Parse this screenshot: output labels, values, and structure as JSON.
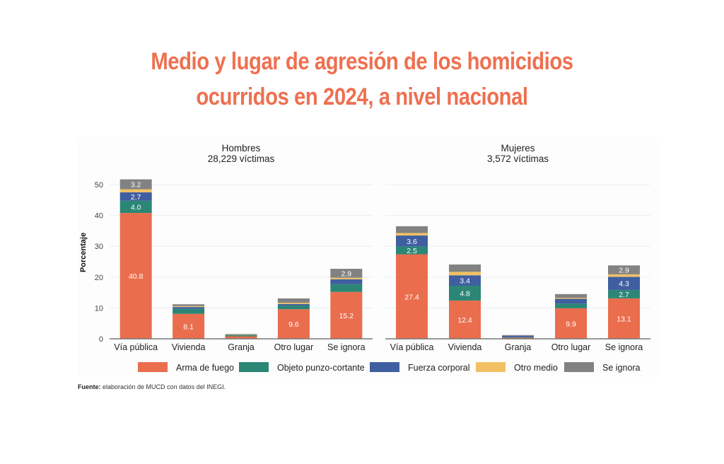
{
  "title": {
    "line1": "Medio y lugar de agresión de los homicidios",
    "line2": "ocurridos en 2024, a nivel nacional",
    "color": "#ee7050"
  },
  "source": {
    "label": "Fuente:",
    "text": "elaboración de MUCD con datos del INEGI."
  },
  "chart_data": {
    "type": "bar",
    "stacked": true,
    "ylabel": "Porcentaje",
    "ylim": [
      0,
      52
    ],
    "yticks": [
      0,
      10,
      20,
      30,
      40,
      50
    ],
    "grid": true,
    "legend_position": "bottom",
    "categories": [
      "Vía pública",
      "Vivienda",
      "Granja",
      "Otro lugar",
      "Se ignora"
    ],
    "legend": [
      {
        "name": "Arma de fuego",
        "color": "#ea6e4d"
      },
      {
        "name": "Objeto punzo-cortante",
        "color": "#2b8675"
      },
      {
        "name": "Fuerza corporal",
        "color": "#3f5fa0"
      },
      {
        "name": "Otro medio",
        "color": "#f2c164"
      },
      {
        "name": "Se ignora",
        "color": "#828282"
      }
    ],
    "panels": [
      {
        "title": "Hombres",
        "subtitle": "28,229 víctimas",
        "series": [
          {
            "name": "Arma de fuego",
            "values": [
              40.8,
              8.1,
              0.8,
              9.6,
              15.2
            ],
            "labels": [
              "40.8",
              "8.1",
              "",
              "9.6",
              "15.2"
            ]
          },
          {
            "name": "Objeto punzo-cortante",
            "values": [
              4.0,
              1.6,
              0.4,
              1.2,
              2.5
            ],
            "labels": [
              "4.0",
              "",
              "",
              "",
              ""
            ]
          },
          {
            "name": "Fuerza corporal",
            "values": [
              2.7,
              0.6,
              0.1,
              0.5,
              1.6
            ],
            "labels": [
              "2.7",
              "",
              "",
              "",
              ""
            ]
          },
          {
            "name": "Otro medio",
            "values": [
              1.0,
              0.3,
              0.05,
              0.4,
              0.5
            ],
            "labels": [
              "",
              "",
              "",
              "",
              ""
            ]
          },
          {
            "name": "Se ignora",
            "values": [
              3.2,
              0.6,
              0.2,
              1.4,
              2.9
            ],
            "labels": [
              "3.2",
              "",
              "",
              "",
              "2.9"
            ]
          }
        ]
      },
      {
        "title": "Mujeres",
        "subtitle": "3,572 víctimas",
        "series": [
          {
            "name": "Arma de fuego",
            "values": [
              27.4,
              12.4,
              0.4,
              9.9,
              13.1
            ],
            "labels": [
              "27.4",
              "12.4",
              "",
              "9.9",
              "13.1"
            ]
          },
          {
            "name": "Objeto punzo-cortante",
            "values": [
              2.5,
              4.8,
              0.1,
              1.5,
              2.7
            ],
            "labels": [
              "2.5",
              "4.8",
              "",
              "",
              "2.7"
            ]
          },
          {
            "name": "Fuerza corporal",
            "values": [
              3.6,
              3.4,
              0.5,
              1.6,
              4.3
            ],
            "labels": [
              "3.6",
              "3.4",
              "",
              "",
              "4.3"
            ]
          },
          {
            "name": "Otro medio",
            "values": [
              0.8,
              1.1,
              0.0,
              0.3,
              0.8
            ],
            "labels": [
              "",
              "",
              "",
              "",
              ""
            ]
          },
          {
            "name": "Se ignora",
            "values": [
              2.2,
              2.4,
              0.2,
              1.2,
              2.9
            ],
            "labels": [
              "",
              "",
              "",
              "",
              "2.9"
            ]
          }
        ]
      }
    ]
  }
}
